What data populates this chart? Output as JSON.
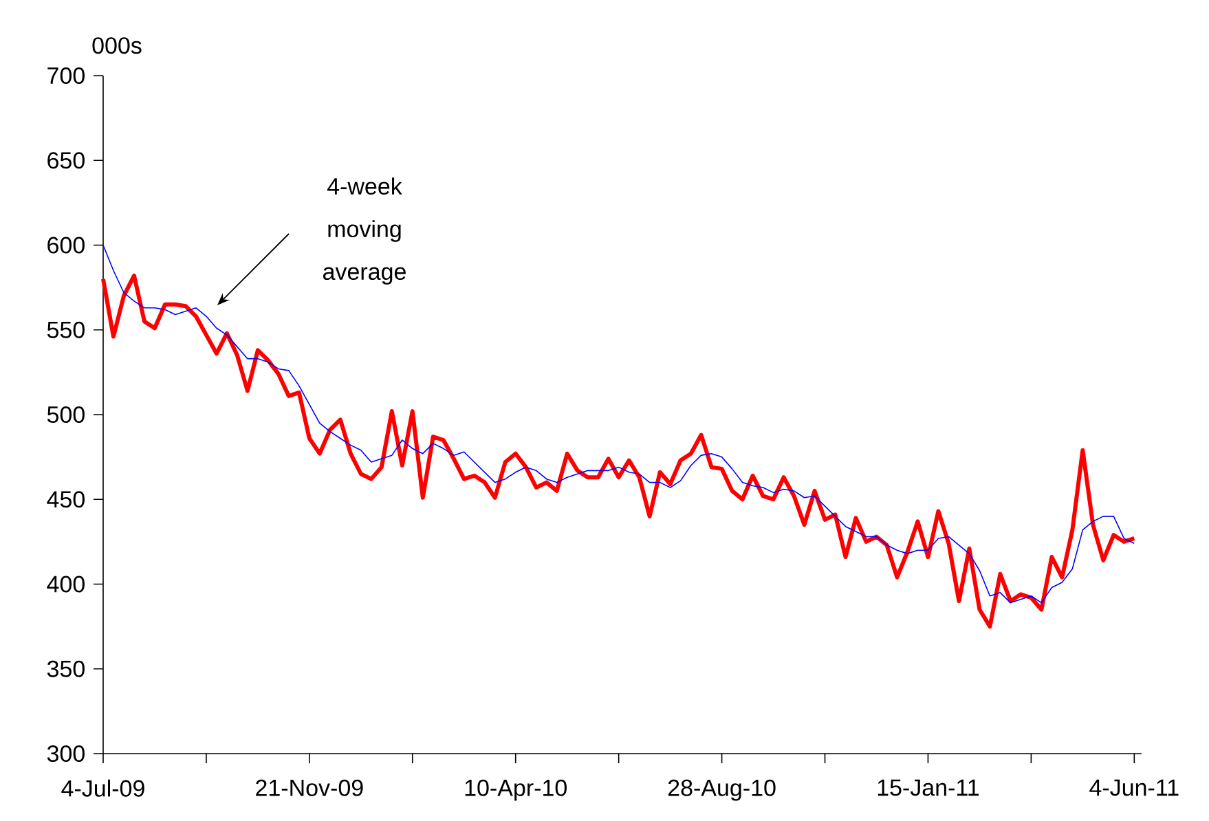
{
  "chart_data": {
    "type": "line",
    "ylabel": "000s",
    "x": [
      "2009-07-04",
      "2009-07-11",
      "2009-07-18",
      "2009-07-25",
      "2009-08-01",
      "2009-08-08",
      "2009-08-15",
      "2009-08-22",
      "2009-08-29",
      "2009-09-05",
      "2009-09-12",
      "2009-09-19",
      "2009-09-26",
      "2009-10-03",
      "2009-10-10",
      "2009-10-17",
      "2009-10-24",
      "2009-10-31",
      "2009-11-07",
      "2009-11-14",
      "2009-11-21",
      "2009-11-28",
      "2009-12-05",
      "2009-12-12",
      "2009-12-19",
      "2009-12-26",
      "2010-01-02",
      "2010-01-09",
      "2010-01-16",
      "2010-01-23",
      "2010-01-30",
      "2010-02-06",
      "2010-02-13",
      "2010-02-20",
      "2010-02-27",
      "2010-03-06",
      "2010-03-13",
      "2010-03-20",
      "2010-03-27",
      "2010-04-03",
      "2010-04-10",
      "2010-04-17",
      "2010-04-24",
      "2010-05-01",
      "2010-05-08",
      "2010-05-15",
      "2010-05-22",
      "2010-05-29",
      "2010-06-05",
      "2010-06-12",
      "2010-06-19",
      "2010-06-26",
      "2010-07-03",
      "2010-07-10",
      "2010-07-17",
      "2010-07-24",
      "2010-07-31",
      "2010-08-07",
      "2010-08-14",
      "2010-08-21",
      "2010-08-28",
      "2010-09-04",
      "2010-09-11",
      "2010-09-18",
      "2010-09-25",
      "2010-10-02",
      "2010-10-09",
      "2010-10-16",
      "2010-10-23",
      "2010-10-30",
      "2010-11-06",
      "2010-11-13",
      "2010-11-20",
      "2010-11-27",
      "2010-12-04",
      "2010-12-11",
      "2010-12-18",
      "2010-12-25",
      "2011-01-01",
      "2011-01-08",
      "2011-01-15",
      "2011-01-22",
      "2011-01-29",
      "2011-02-05",
      "2011-02-12",
      "2011-02-19",
      "2011-02-26",
      "2011-03-05",
      "2011-03-12",
      "2011-03-19",
      "2011-03-26",
      "2011-04-02",
      "2011-04-09",
      "2011-04-16",
      "2011-04-23",
      "2011-04-30",
      "2011-05-07",
      "2011-05-14",
      "2011-05-21",
      "2011-05-28",
      "2011-06-04"
    ],
    "series": [
      {
        "color": "#ff0000",
        "values": [
          580,
          546,
          570,
          582,
          555,
          551,
          565,
          565,
          564,
          558,
          547,
          536,
          548,
          535,
          514,
          538,
          532,
          524,
          511,
          513,
          486,
          477,
          491,
          497,
          477,
          465,
          462,
          469,
          502,
          470,
          502,
          451,
          487,
          485,
          474,
          462,
          464,
          460,
          451,
          472,
          477,
          469,
          457,
          460,
          455,
          477,
          467,
          463,
          463,
          474,
          463,
          473,
          463,
          440,
          466,
          459,
          473,
          477,
          488,
          469,
          468,
          455,
          450,
          464,
          452,
          450,
          463,
          452,
          435,
          455,
          438,
          441,
          416,
          439,
          425,
          428,
          423,
          404,
          419,
          437,
          416,
          443,
          424,
          390,
          421,
          385,
          375,
          406,
          390,
          394,
          392,
          385,
          416,
          404,
          432,
          479,
          435,
          414,
          429,
          425,
          427
        ]
      },
      {
        "color": "#0000ff",
        "values": [
          600,
          585,
          572,
          567,
          563,
          563,
          562,
          559,
          561,
          563,
          558,
          551,
          547,
          540,
          533,
          533,
          531,
          527,
          526,
          517,
          506,
          495,
          490,
          486,
          482,
          479,
          472,
          474,
          476,
          485,
          480,
          477,
          483,
          480,
          476,
          478,
          472,
          466,
          460,
          462,
          466,
          469,
          467,
          462,
          460,
          463,
          465,
          467,
          467,
          467,
          469,
          466,
          465,
          460,
          460,
          457,
          461,
          470,
          476,
          477,
          475,
          468,
          460,
          458,
          457,
          454,
          456,
          455,
          451,
          452,
          446,
          440,
          434,
          431,
          428,
          428,
          423,
          420,
          418,
          420,
          420,
          427,
          428,
          423,
          418,
          408,
          393,
          395,
          389,
          391,
          393,
          389,
          398,
          401,
          409,
          432,
          437,
          440,
          440,
          427,
          424
        ]
      }
    ],
    "xlim": [
      "2009-07-04",
      "2011-06-09"
    ],
    "xticks": [
      {
        "value": "2009-07-04",
        "label": "4-Jul-09"
      },
      {
        "value": "2009-09-12",
        "label": null
      },
      {
        "value": "2009-11-21",
        "label": "21-Nov-09"
      },
      {
        "value": "2010-01-30",
        "label": null
      },
      {
        "value": "2010-04-10",
        "label": "10-Apr-10"
      },
      {
        "value": "2010-06-19",
        "label": null
      },
      {
        "value": "2010-08-28",
        "label": "28-Aug-10"
      },
      {
        "value": "2010-11-06",
        "label": null
      },
      {
        "value": "2011-01-15",
        "label": "15-Jan-11"
      },
      {
        "value": "2011-03-26",
        "label": null
      },
      {
        "value": "2011-06-04",
        "label": "4-Jun-11"
      }
    ],
    "ylim": [
      300,
      700
    ],
    "yticks": [
      300,
      350,
      400,
      450,
      500,
      550,
      600,
      650,
      700
    ],
    "annotations": [
      "4-week moving average"
    ],
    "marker": "none",
    "line_style": "solid",
    "grid": false
  }
}
